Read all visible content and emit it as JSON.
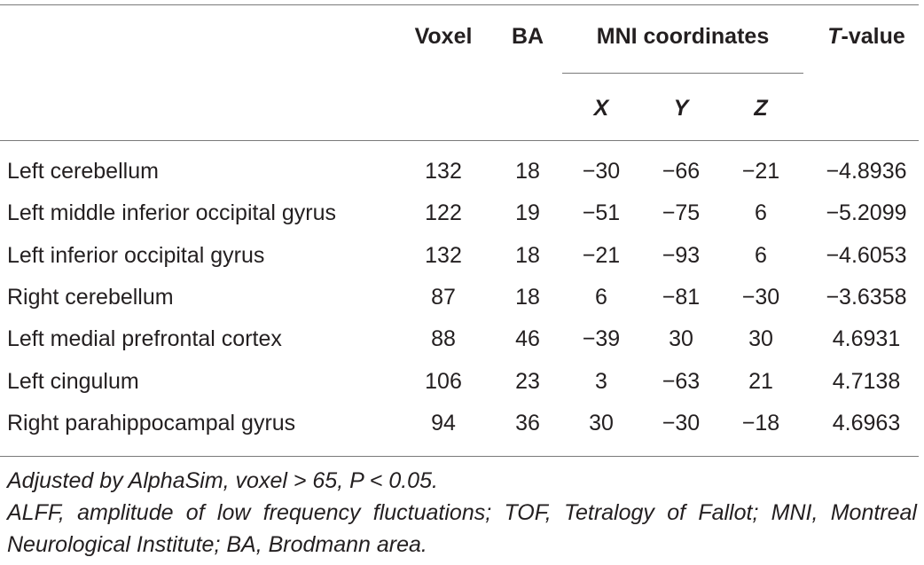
{
  "table": {
    "headers": {
      "voxel": "Voxel",
      "ba": "BA",
      "mni": "MNI coordinates",
      "t_letter": "T",
      "t_rest": "-value",
      "x": "X",
      "y": "Y",
      "z": "Z"
    },
    "rows": [
      {
        "region": "Left cerebellum",
        "voxel": "132",
        "ba": "18",
        "x": "−30",
        "y": "−66",
        "z": "−21",
        "t": "−4.8936"
      },
      {
        "region": "Left middle inferior occipital gyrus",
        "voxel": "122",
        "ba": "19",
        "x": "−51",
        "y": "−75",
        "z": "6",
        "t": "−5.2099"
      },
      {
        "region": "Left inferior occipital gyrus",
        "voxel": "132",
        "ba": "18",
        "x": "−21",
        "y": "−93",
        "z": "6",
        "t": "−4.6053"
      },
      {
        "region": "Right cerebellum",
        "voxel": "87",
        "ba": "18",
        "x": "6",
        "y": "−81",
        "z": "−30",
        "t": "−3.6358"
      },
      {
        "region": "Left medial prefrontal cortex",
        "voxel": "88",
        "ba": "46",
        "x": "−39",
        "y": "30",
        "z": "30",
        "t": "4.6931"
      },
      {
        "region": "Left cingulum",
        "voxel": "106",
        "ba": "23",
        "x": "3",
        "y": "−63",
        "z": "21",
        "t": "4.7138"
      },
      {
        "region": "Right parahippocampal gyrus",
        "voxel": "94",
        "ba": "36",
        "x": "30",
        "y": "−30",
        "z": "−18",
        "t": "4.6963"
      }
    ]
  },
  "notes": {
    "line1": "Adjusted by AlphaSim, voxel > 65, P < 0.05.",
    "line2": "ALFF, amplitude of low frequency fluctuations; TOF, Tetralogy of Fallot; MNI, Montreal Neurological Institute; BA, Brodmann area."
  }
}
